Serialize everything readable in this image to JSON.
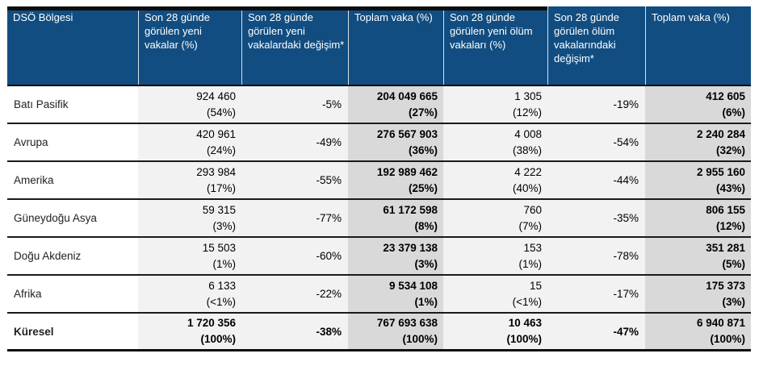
{
  "table": {
    "columns": [
      "DSÖ Bölgesi",
      "Son 28 günde görülen yeni vakalar (%)",
      "Son 28 günde görülen yeni vakalardaki değişim*",
      "Toplam vaka (%)",
      "Son 28 günde görülen yeni ölüm vakaları (%)",
      "Son 28 günde görülen ölüm vakalarındaki değişim*",
      "Toplam vaka (%)"
    ],
    "rows": [
      {
        "region": "Batı Pasifik",
        "new_cases": "924 460",
        "new_cases_pct": "(54%)",
        "case_change": "-5%",
        "total_cases": "204 049 665",
        "total_cases_pct": "(27%)",
        "new_deaths": "1 305",
        "new_deaths_pct": "(12%)",
        "death_change": "-19%",
        "total_deaths": "412 605",
        "total_deaths_pct": "(6%)",
        "bold": false
      },
      {
        "region": "Avrupa",
        "new_cases": "420 961",
        "new_cases_pct": "(24%)",
        "case_change": "-49%",
        "total_cases": "276 567 903",
        "total_cases_pct": "(36%)",
        "new_deaths": "4 008",
        "new_deaths_pct": "(38%)",
        "death_change": "-54%",
        "total_deaths": "2 240 284",
        "total_deaths_pct": "(32%)",
        "bold": false
      },
      {
        "region": "Amerika",
        "new_cases": "293 984",
        "new_cases_pct": "(17%)",
        "case_change": "-55%",
        "total_cases": "192 989 462",
        "total_cases_pct": "(25%)",
        "new_deaths": "4 222",
        "new_deaths_pct": "(40%)",
        "death_change": "-44%",
        "total_deaths": "2 955 160",
        "total_deaths_pct": "(43%)",
        "bold": false
      },
      {
        "region": "Güneydoğu Asya",
        "new_cases": "59 315",
        "new_cases_pct": "(3%)",
        "case_change": "-77%",
        "total_cases": "61 172 598",
        "total_cases_pct": "(8%)",
        "new_deaths": "760",
        "new_deaths_pct": "(7%)",
        "death_change": "-35%",
        "total_deaths": "806 155",
        "total_deaths_pct": "(12%)",
        "bold": false
      },
      {
        "region": "Doğu Akdeniz",
        "new_cases": "15 503",
        "new_cases_pct": "(1%)",
        "case_change": "-60%",
        "total_cases": "23 379 138",
        "total_cases_pct": "(3%)",
        "new_deaths": "153",
        "new_deaths_pct": "(1%)",
        "death_change": "-78%",
        "total_deaths": "351 281",
        "total_deaths_pct": "(5%)",
        "bold": false
      },
      {
        "region": "Afrika",
        "new_cases": "6 133",
        "new_cases_pct": "(<1%)",
        "case_change": "-22%",
        "total_cases": "9 534 108",
        "total_cases_pct": "(1%)",
        "new_deaths": "15",
        "new_deaths_pct": "(<1%)",
        "death_change": "-17%",
        "total_deaths": "175 373",
        "total_deaths_pct": "(3%)",
        "bold": false
      },
      {
        "region": "Küresel",
        "new_cases": "1 720 356",
        "new_cases_pct": "(100%)",
        "case_change": "-38%",
        "total_cases": "767 693 638",
        "total_cases_pct": "(100%)",
        "new_deaths": "10 463",
        "new_deaths_pct": "(100%)",
        "death_change": "-47%",
        "total_deaths": "6 940 871",
        "total_deaths_pct": "(100%)",
        "bold": true
      }
    ]
  },
  "colors": {
    "header_bg": "#114d80",
    "header_text": "#ffffff",
    "light_column_bg": "#f2f2f2",
    "dark_column_bg": "#d9d9d9",
    "border": "#0d0d0d"
  }
}
